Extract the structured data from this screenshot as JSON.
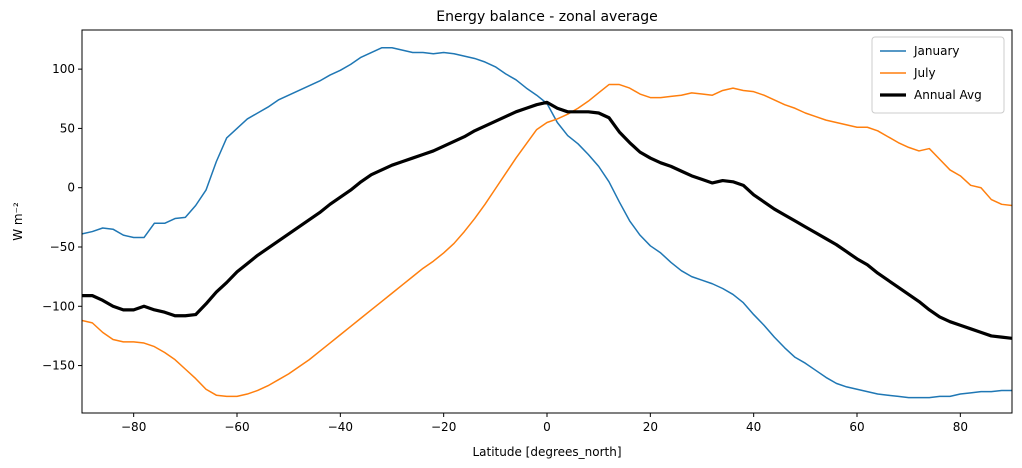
{
  "chart_data": {
    "type": "line",
    "title": "Energy balance  - zonal average",
    "xlabel": "Latitude [degrees_north]",
    "ylabel": "W m⁻²",
    "xlim": [
      -90,
      90
    ],
    "ylim": [
      -190,
      133
    ],
    "xticks": [
      -80,
      -60,
      -40,
      -20,
      0,
      20,
      40,
      60,
      80
    ],
    "yticks": [
      -150,
      -100,
      -50,
      0,
      50,
      100
    ],
    "grid": false,
    "legend_position": "top-right",
    "x": [
      -90,
      -88,
      -86,
      -84,
      -82,
      -80,
      -78,
      -76,
      -74,
      -72,
      -70,
      -68,
      -66,
      -64,
      -62,
      -60,
      -58,
      -56,
      -54,
      -52,
      -50,
      -48,
      -46,
      -44,
      -42,
      -40,
      -38,
      -36,
      -34,
      -32,
      -30,
      -28,
      -26,
      -24,
      -22,
      -20,
      -18,
      -16,
      -14,
      -12,
      -10,
      -8,
      -6,
      -4,
      -2,
      0,
      2,
      4,
      6,
      8,
      10,
      12,
      14,
      16,
      18,
      20,
      22,
      24,
      26,
      28,
      30,
      32,
      34,
      36,
      38,
      40,
      42,
      44,
      46,
      48,
      50,
      52,
      54,
      56,
      58,
      60,
      62,
      64,
      66,
      68,
      70,
      72,
      74,
      76,
      78,
      80,
      82,
      84,
      86,
      88,
      90
    ],
    "series": [
      {
        "name": "January",
        "color": "#1f77b4",
        "line_width": 1.5,
        "values": [
          -39,
          -37,
          -34,
          -35,
          -40,
          -42,
          -42,
          -30,
          -30,
          -26,
          -25,
          -15,
          -2,
          22,
          42,
          50,
          58,
          63,
          68,
          74,
          78,
          82,
          86,
          90,
          95,
          99,
          104,
          110,
          114,
          118,
          118,
          116,
          114,
          114,
          113,
          114,
          113,
          111,
          109,
          106,
          102,
          96,
          91,
          84,
          78,
          71,
          55,
          44,
          37,
          28,
          18,
          5,
          -12,
          -28,
          -40,
          -49,
          -55,
          -63,
          -70,
          -75,
          -78,
          -81,
          -85,
          -90,
          -97,
          -107,
          -116,
          -126,
          -135,
          -143,
          -148,
          -154,
          -160,
          -165,
          -168,
          -170,
          -172,
          -174,
          -175,
          -176,
          -177,
          -177,
          -177,
          -176,
          -176,
          -174,
          -173,
          -172,
          -172,
          -171,
          -171
        ]
      },
      {
        "name": "July",
        "color": "#ff7f0e",
        "line_width": 1.5,
        "values": [
          -112,
          -114,
          -122,
          -128,
          -130,
          -130,
          -131,
          -134,
          -139,
          -145,
          -153,
          -161,
          -170,
          -175,
          -176,
          -176,
          -174,
          -171,
          -167,
          -162,
          -157,
          -151,
          -145,
          -138,
          -131,
          -124,
          -117,
          -110,
          -103,
          -96,
          -89,
          -82,
          -75,
          -68,
          -62,
          -55,
          -47,
          -37,
          -26,
          -14,
          -1,
          12,
          25,
          37,
          49,
          55,
          58,
          62,
          67,
          73,
          80,
          87,
          87,
          84,
          79,
          76,
          76,
          77,
          78,
          80,
          79,
          78,
          82,
          84,
          82,
          81,
          78,
          74,
          70,
          67,
          63,
          60,
          57,
          55,
          53,
          51,
          51,
          48,
          43,
          38,
          34,
          31,
          33,
          24,
          15,
          10,
          2,
          0,
          -10,
          -14,
          -15
        ]
      },
      {
        "name": "Annual Avg",
        "color": "#000000",
        "line_width": 3.2,
        "values": [
          -91,
          -91,
          -95,
          -100,
          -103,
          -103,
          -100,
          -103,
          -105,
          -108,
          -108,
          -107,
          -98,
          -88,
          -80,
          -71,
          -64,
          -57,
          -51,
          -45,
          -39,
          -33,
          -27,
          -21,
          -14,
          -8,
          -2,
          5,
          11,
          15,
          19,
          22,
          25,
          28,
          31,
          35,
          39,
          43,
          48,
          52,
          56,
          60,
          64,
          67,
          70,
          72,
          67,
          64,
          64,
          64,
          63,
          59,
          47,
          38,
          30,
          25,
          21,
          18,
          14,
          10,
          7,
          4,
          6,
          5,
          2,
          -6,
          -12,
          -18,
          -23,
          -28,
          -33,
          -38,
          -43,
          -48,
          -54,
          -60,
          -65,
          -72,
          -78,
          -84,
          -90,
          -96,
          -103,
          -109,
          -113,
          -116,
          -119,
          -122,
          -125,
          -126,
          -127
        ]
      }
    ]
  }
}
